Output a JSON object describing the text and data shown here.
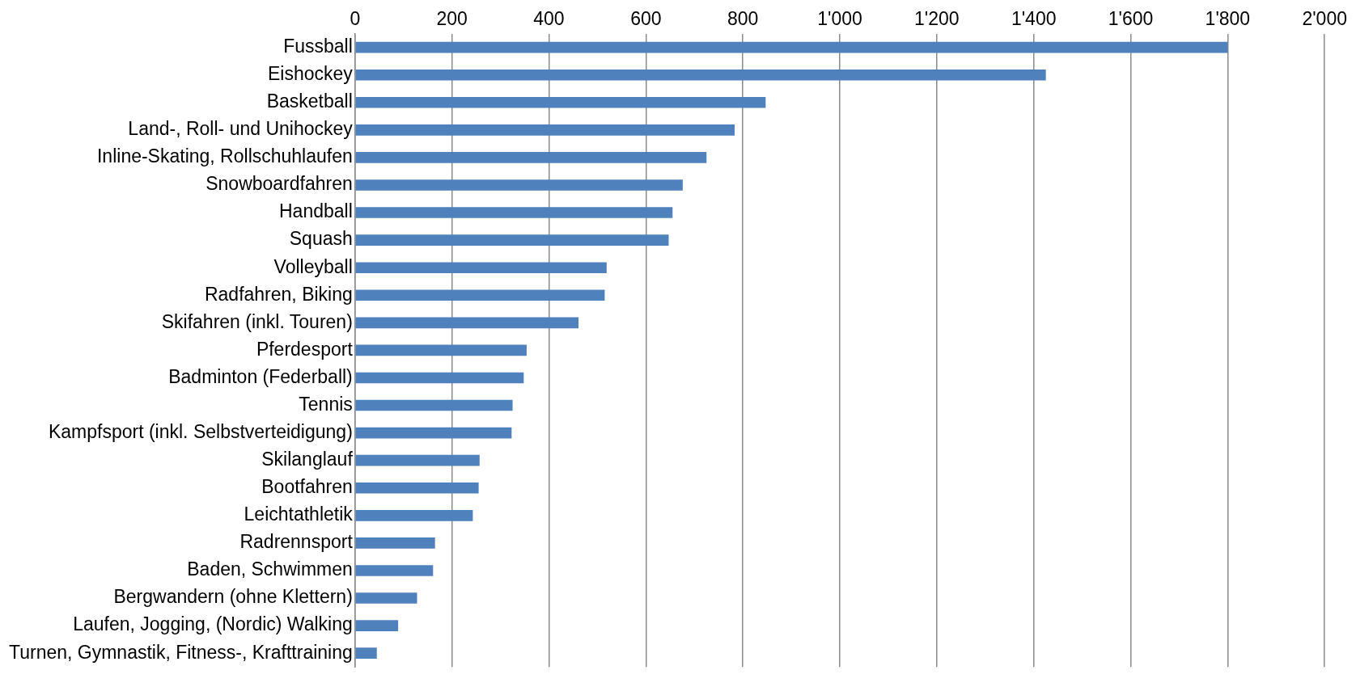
{
  "chart_data": {
    "type": "bar",
    "orientation": "horizontal",
    "categories": [
      "Fussball",
      "Eishockey",
      "Basketball",
      "Land-, Roll- und Unihockey",
      "Inline-Skating, Rollschuhlaufen",
      "Snowboardfahren",
      "Handball",
      "Squash",
      "Volleyball",
      "Radfahren, Biking",
      "Skifahren (inkl. Touren)",
      "Pferdesport",
      "Badminton (Federball)",
      "Tennis",
      "Kampfsport (inkl. Selbstverteidigung)",
      "Skilanglauf",
      "Bootfahren",
      "Leichtathletik",
      "Radrennsport",
      "Baden, Schwimmen",
      "Bergwandern (ohne Klettern)",
      "Laufen, Jogging, (Nordic) Walking",
      "Turnen, Gymnastik, Fitness-, Krafttraining"
    ],
    "values": [
      1800,
      1425,
      847,
      783,
      725,
      676,
      655,
      647,
      519,
      515,
      461,
      354,
      348,
      325,
      323,
      257,
      255,
      243,
      165,
      161,
      128,
      89,
      45
    ],
    "color": "#4f81bd",
    "xlim": [
      0,
      2000
    ],
    "xticks": [
      0,
      200,
      400,
      600,
      800,
      {
        "value": 1000,
        "label": "1'000"
      },
      {
        "value": 1200,
        "label": "1'200"
      },
      {
        "value": 1400,
        "label": "1'400"
      },
      {
        "value": 1600,
        "label": "1'600"
      },
      {
        "value": 1800,
        "label": "1'800"
      },
      {
        "value": 2000,
        "label": "2'000"
      }
    ],
    "grid": "x"
  }
}
